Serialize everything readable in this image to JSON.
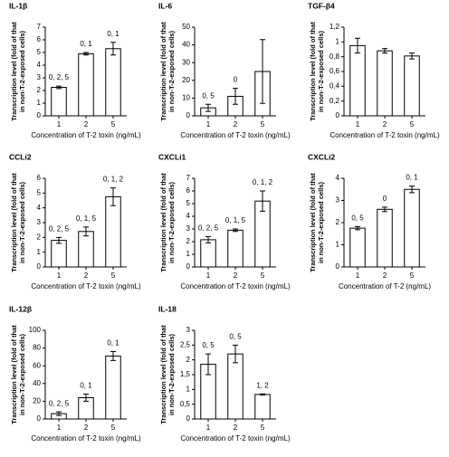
{
  "chart_data": [
    {
      "type": "bar",
      "title": "IL-1β",
      "categories": [
        "1",
        "2",
        "5"
      ],
      "values": [
        2.25,
        4.9,
        5.3
      ],
      "errors": [
        0.1,
        0.1,
        0.5
      ],
      "annotations": [
        "0, 2, 5",
        "0, 1",
        "0, 1"
      ],
      "ylim": [
        0,
        7
      ],
      "yticks": [
        0,
        1,
        2,
        3,
        4,
        5,
        6,
        7
      ],
      "xlabel": "Concentration of T-2 toxin (ng/mL)",
      "ylabel": [
        "Transcription level (fold of that",
        "in non-T-2-exposed cells)"
      ],
      "color": "#ffffff"
    },
    {
      "type": "bar",
      "title": "IL-6",
      "categories": [
        "1",
        "2",
        "5"
      ],
      "values": [
        4.5,
        11,
        25
      ],
      "errors": [
        2,
        4.5,
        18
      ],
      "annotations": [
        "0, 5",
        "0",
        null
      ],
      "ylim": [
        0,
        50
      ],
      "yticks": [
        0,
        10,
        20,
        30,
        40,
        50
      ],
      "xlabel": "Concentration of T-2 toxin (ng/mL)",
      "ylabel": [
        "Transcription level (fold of that",
        "in non-T-2-exposed cells)"
      ],
      "color": "#ffffff"
    },
    {
      "type": "bar",
      "title": "TGF-β4",
      "categories": [
        "1",
        "2",
        "5"
      ],
      "values": [
        0.95,
        0.88,
        0.81
      ],
      "errors": [
        0.1,
        0.03,
        0.04
      ],
      "annotations": [
        null,
        null,
        null
      ],
      "ylim": [
        0,
        1.2
      ],
      "yticks": [
        0,
        {
          "value": 0.2,
          "label": "0,2"
        },
        {
          "value": 0.4,
          "label": "0,4"
        },
        {
          "value": 0.6,
          "label": "0,6"
        },
        {
          "value": 0.8,
          "label": "0,8"
        },
        1,
        {
          "value": 1.2,
          "label": "1,2"
        }
      ],
      "xlabel": "Concentration of T-2 toxin (ng/mL)",
      "ylabel": [
        "Transcription level (fold of that",
        "in non-T-2-exposed cells)"
      ],
      "color": "#ffffff"
    },
    {
      "type": "bar",
      "title": "CCLi2",
      "categories": [
        "1",
        "2",
        "5"
      ],
      "values": [
        1.8,
        2.4,
        4.75
      ],
      "errors": [
        0.2,
        0.3,
        0.6
      ],
      "annotations": [
        "0, 2, 5",
        "0, 1, 5",
        "0, 1, 2"
      ],
      "ylim": [
        0,
        6
      ],
      "yticks": [
        0,
        1,
        2,
        3,
        4,
        5,
        6
      ],
      "xlabel": "Concentration of T-2 toxin (ng/mL)",
      "ylabel": [
        "Transcription level (fold of that",
        "in non-T-2-exposed cells)"
      ],
      "color": "#ffffff"
    },
    {
      "type": "bar",
      "title": "CXCLi1",
      "categories": [
        "1",
        "2",
        "5"
      ],
      "values": [
        2.15,
        2.9,
        5.2
      ],
      "errors": [
        0.25,
        0.1,
        0.8
      ],
      "annotations": [
        "0, 2, 5",
        "0, 1, 5",
        "0, 1, 2"
      ],
      "ylim": [
        0,
        7
      ],
      "yticks": [
        0,
        1,
        2,
        3,
        4,
        5,
        6,
        7
      ],
      "xlabel": "Concentration of T-2 toxin (ng/mL)",
      "ylabel": [
        "Transcription level (fold of that",
        "in non-T-2-exposed cells)"
      ],
      "color": "#ffffff"
    },
    {
      "type": "bar",
      "title": "CXCLi2",
      "categories": [
        "1",
        "2",
        "5"
      ],
      "values": [
        1.75,
        2.6,
        3.5
      ],
      "errors": [
        0.07,
        0.1,
        0.15
      ],
      "annotations": [
        "0, 5",
        "0",
        "0, 1"
      ],
      "ylim": [
        0,
        4
      ],
      "yticks": [
        0,
        1,
        2,
        3,
        4
      ],
      "xlabel": "Concentration of T-2 (ng/mL)",
      "ylabel": [
        "Transcription level (fold of that",
        "in non-T-2-exposed cells)"
      ],
      "color": "#ffffff"
    },
    {
      "type": "bar",
      "title": "IL-12β",
      "categories": [
        "1",
        "2",
        "5"
      ],
      "values": [
        6,
        24,
        71
      ],
      "errors": [
        2,
        4,
        5
      ],
      "annotations": [
        "0, 2, 5",
        "0, 1",
        "0, 1"
      ],
      "ylim": [
        0,
        100
      ],
      "yticks": [
        0,
        20,
        40,
        60,
        80,
        100
      ],
      "xlabel": "Concentration of T-2 toxin (ng/mL)",
      "ylabel": [
        "Transcription level (fold of that",
        "in non-T-2-exposed cells)"
      ],
      "color": "#ffffff"
    },
    {
      "type": "bar",
      "title": "IL-18",
      "categories": [
        "1",
        "2",
        "5"
      ],
      "values": [
        1.85,
        2.2,
        0.83
      ],
      "errors": [
        0.35,
        0.3,
        0.02
      ],
      "annotations": [
        "0, 5",
        "0, 5",
        "1, 2"
      ],
      "ylim": [
        0,
        3
      ],
      "yticks": [
        0,
        {
          "value": 0.5,
          "label": "0,5"
        },
        1,
        {
          "value": 1.5,
          "label": "1,5"
        },
        2,
        {
          "value": 2.5,
          "label": "2,5"
        },
        3
      ],
      "xlabel": "Concentration of T-2 toxin (ng/mL)",
      "ylabel": [
        "Transcription level (fold of that",
        "in non-T-2-exposed cells)"
      ],
      "color": "#ffffff"
    }
  ]
}
